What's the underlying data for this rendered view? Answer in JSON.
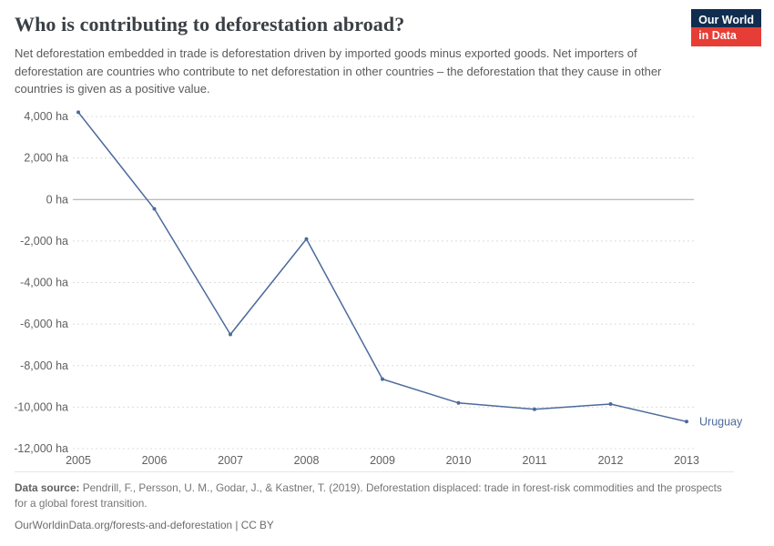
{
  "logo": {
    "line1": "Our World",
    "line2": "in Data"
  },
  "header": {
    "title": "Who is contributing to deforestation abroad?",
    "subtitle": "Net deforestation embedded in trade is deforestation driven by imported goods minus exported goods. Net importers of deforestation are countries who contribute to net deforestation in other countries – the deforestation that they cause in other countries is given as a positive value."
  },
  "chart_data": {
    "type": "line",
    "title": "Who is contributing to deforestation abroad?",
    "xlabel": "",
    "ylabel": "",
    "unit": "ha",
    "x": [
      2005,
      2006,
      2007,
      2008,
      2009,
      2010,
      2011,
      2012,
      2013
    ],
    "series": [
      {
        "name": "Uruguay",
        "color": "#4c6a9c",
        "values": [
          4200,
          -450,
          -6500,
          -1900,
          -8650,
          -9800,
          -10100,
          -9850,
          -10700
        ]
      }
    ],
    "xlim": [
      2005,
      2013
    ],
    "ylim": [
      -12000,
      4000
    ],
    "yticks": [
      {
        "value": 4000,
        "label": "4,000 ha"
      },
      {
        "value": 2000,
        "label": "2,000 ha"
      },
      {
        "value": 0,
        "label": "0 ha"
      },
      {
        "value": -2000,
        "label": "-2,000 ha"
      },
      {
        "value": -4000,
        "label": "-4,000 ha"
      },
      {
        "value": -6000,
        "label": "-6,000 ha"
      },
      {
        "value": -8000,
        "label": "-8,000 ha"
      },
      {
        "value": -10000,
        "label": "-10,000 ha"
      },
      {
        "value": -12000,
        "label": "-12,000 ha"
      }
    ],
    "xticks": [
      {
        "value": 2005,
        "label": "2005"
      },
      {
        "value": 2006,
        "label": "2006"
      },
      {
        "value": 2007,
        "label": "2007"
      },
      {
        "value": 2008,
        "label": "2008"
      },
      {
        "value": 2009,
        "label": "2009"
      },
      {
        "value": 2010,
        "label": "2010"
      },
      {
        "value": 2011,
        "label": "2011"
      },
      {
        "value": 2012,
        "label": "2012"
      },
      {
        "value": 2013,
        "label": "2013"
      }
    ],
    "grid": "horizontal-dashed",
    "legend_position": "end-of-line-label"
  },
  "footer": {
    "source_label": "Data source:",
    "source_text": "Pendrill, F., Persson, U. M., Godar, J., & Kastner, T. (2019). Deforestation displaced: trade in forest-risk commodities and the prospects for a global forest transition.",
    "citation_line": "OurWorldinData.org/forests-and-deforestation | CC BY"
  },
  "colors": {
    "series_uruguay": "#4c6a9c",
    "brand_navy": "#102d50",
    "brand_red": "#e63e36",
    "gridline": "#dcdcdc",
    "zero_line": "#a3a3a3",
    "tick_text": "#606060"
  }
}
